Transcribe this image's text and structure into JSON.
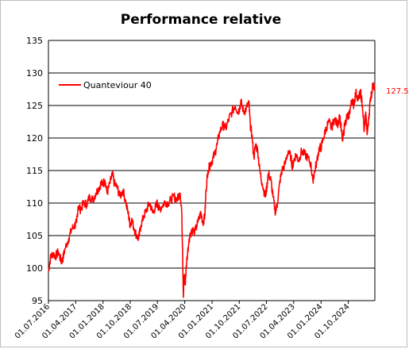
{
  "chart_data": {
    "type": "line",
    "title": "Performance relative",
    "xlabel": "",
    "ylabel": "",
    "ylim": [
      95,
      135
    ],
    "yticks": [
      95,
      100,
      105,
      110,
      115,
      120,
      125,
      130,
      135
    ],
    "xticks": [
      "01.07.2016",
      "01.04.2017",
      "01.01.2018",
      "01.10.2018",
      "01.07.2019",
      "01.04.2020",
      "01.01.2021",
      "01.10.2021",
      "01.07.2022",
      "01.04.2023",
      "01.01.2024",
      "01.10.2024"
    ],
    "grid": "horizontal",
    "legend_position": "top-left",
    "end_label": "127.5",
    "series": [
      {
        "name": "Quanteviour 40",
        "color": "#ff0000",
        "points": [
          [
            "2016-07-01",
            99.5
          ],
          [
            "2016-07-20",
            101.5
          ],
          [
            "2016-08-15",
            102.3
          ],
          [
            "2016-09-10",
            101.8
          ],
          [
            "2016-10-10",
            102.5
          ],
          [
            "2016-11-05",
            101.0
          ],
          [
            "2016-11-20",
            101.3
          ],
          [
            "2016-12-15",
            103.0
          ],
          [
            "2017-01-20",
            104.5
          ],
          [
            "2017-02-20",
            106.0
          ],
          [
            "2017-03-20",
            106.5
          ],
          [
            "2017-04-10",
            107.0
          ],
          [
            "2017-04-25",
            109.5
          ],
          [
            "2017-05-20",
            109.0
          ],
          [
            "2017-06-20",
            110.0
          ],
          [
            "2017-07-20",
            109.8
          ],
          [
            "2017-08-20",
            111.0
          ],
          [
            "2017-09-20",
            110.5
          ],
          [
            "2017-10-20",
            111.5
          ],
          [
            "2017-11-20",
            112.3
          ],
          [
            "2017-12-10",
            113.0
          ],
          [
            "2018-01-01",
            113.0
          ],
          [
            "2018-01-20",
            113.5
          ],
          [
            "2018-02-10",
            111.5
          ],
          [
            "2018-03-10",
            113.0
          ],
          [
            "2018-04-05",
            114.5
          ],
          [
            "2018-04-25",
            113.0
          ],
          [
            "2018-05-20",
            112.5
          ],
          [
            "2018-06-20",
            111.0
          ],
          [
            "2018-07-20",
            112.0
          ],
          [
            "2018-08-20",
            110.0
          ],
          [
            "2018-09-15",
            108.0
          ],
          [
            "2018-10-01",
            106.5
          ],
          [
            "2018-10-15",
            107.5
          ],
          [
            "2018-11-10",
            106.0
          ],
          [
            "2018-12-05",
            105.0
          ],
          [
            "2018-12-25",
            104.5
          ],
          [
            "2019-01-15",
            106.5
          ],
          [
            "2019-02-15",
            108.0
          ],
          [
            "2019-03-15",
            109.0
          ],
          [
            "2019-04-15",
            110.0
          ],
          [
            "2019-05-15",
            108.5
          ],
          [
            "2019-06-15",
            109.5
          ],
          [
            "2019-07-01",
            110.0
          ],
          [
            "2019-07-20",
            109.0
          ],
          [
            "2019-08-15",
            109.5
          ],
          [
            "2019-09-15",
            110.2
          ],
          [
            "2019-10-15",
            110.0
          ],
          [
            "2019-11-15",
            110.5
          ],
          [
            "2019-12-15",
            111.0
          ],
          [
            "2020-01-15",
            110.5
          ],
          [
            "2020-02-15",
            111.5
          ],
          [
            "2020-03-01",
            109.0
          ],
          [
            "2020-03-10",
            103.0
          ],
          [
            "2020-03-18",
            95.5
          ],
          [
            "2020-03-28",
            99.0
          ],
          [
            "2020-04-05",
            97.5
          ],
          [
            "2020-04-20",
            101.0
          ],
          [
            "2020-05-15",
            104.5
          ],
          [
            "2020-06-10",
            106.0
          ],
          [
            "2020-07-10",
            105.5
          ],
          [
            "2020-08-10",
            107.0
          ],
          [
            "2020-09-10",
            108.5
          ],
          [
            "2020-10-01",
            107.0
          ],
          [
            "2020-10-20",
            108.0
          ],
          [
            "2020-11-01",
            112.0
          ],
          [
            "2020-11-20",
            115.0
          ],
          [
            "2020-12-15",
            116.0
          ],
          [
            "2021-01-01",
            116.5
          ],
          [
            "2021-01-25",
            117.5
          ],
          [
            "2021-02-20",
            119.0
          ],
          [
            "2021-03-20",
            121.0
          ],
          [
            "2021-04-20",
            122.0
          ],
          [
            "2021-05-20",
            121.5
          ],
          [
            "2021-06-20",
            123.0
          ],
          [
            "2021-07-20",
            124.0
          ],
          [
            "2021-08-20",
            125.0
          ],
          [
            "2021-09-20",
            124.0
          ],
          [
            "2021-10-01",
            124.5
          ],
          [
            "2021-10-20",
            125.5
          ],
          [
            "2021-11-15",
            124.0
          ],
          [
            "2021-12-10",
            124.5
          ],
          [
            "2022-01-05",
            125.5
          ],
          [
            "2022-01-20",
            122.0
          ],
          [
            "2022-02-05",
            120.5
          ],
          [
            "2022-02-25",
            117.0
          ],
          [
            "2022-03-15",
            119.0
          ],
          [
            "2022-04-05",
            118.0
          ],
          [
            "2022-04-25",
            115.0
          ],
          [
            "2022-05-20",
            113.0
          ],
          [
            "2022-06-20",
            111.0
          ],
          [
            "2022-07-01",
            112.0
          ],
          [
            "2022-07-20",
            114.5
          ],
          [
            "2022-08-15",
            113.5
          ],
          [
            "2022-09-05",
            111.0
          ],
          [
            "2022-09-30",
            108.5
          ],
          [
            "2022-10-20",
            110.0
          ],
          [
            "2022-11-15",
            113.5
          ],
          [
            "2022-12-05",
            115.0
          ],
          [
            "2023-01-05",
            116.0
          ],
          [
            "2023-02-05",
            118.0
          ],
          [
            "2023-03-05",
            117.0
          ],
          [
            "2023-03-20",
            115.5
          ],
          [
            "2023-04-01",
            116.5
          ],
          [
            "2023-04-25",
            117.5
          ],
          [
            "2023-05-20",
            116.5
          ],
          [
            "2023-06-20",
            118.0
          ],
          [
            "2023-07-20",
            117.5
          ],
          [
            "2023-08-20",
            117.0
          ],
          [
            "2023-09-20",
            116.0
          ],
          [
            "2023-10-10",
            113.5
          ],
          [
            "2023-10-25",
            114.5
          ],
          [
            "2023-11-20",
            116.5
          ],
          [
            "2023-12-15",
            118.5
          ],
          [
            "2024-01-01",
            118.5
          ],
          [
            "2024-01-25",
            120.0
          ],
          [
            "2024-02-20",
            121.5
          ],
          [
            "2024-03-20",
            122.5
          ],
          [
            "2024-04-15",
            121.5
          ],
          [
            "2024-05-15",
            123.0
          ],
          [
            "2024-06-15",
            122.0
          ],
          [
            "2024-07-05",
            123.5
          ],
          [
            "2024-07-25",
            121.0
          ],
          [
            "2024-08-05",
            119.5
          ],
          [
            "2024-08-25",
            122.0
          ],
          [
            "2024-09-20",
            123.5
          ],
          [
            "2024-10-01",
            123.0
          ],
          [
            "2024-10-20",
            124.5
          ],
          [
            "2024-11-10",
            126.0
          ],
          [
            "2024-11-25",
            125.0
          ],
          [
            "2024-12-15",
            127.0
          ],
          [
            "2025-01-10",
            126.0
          ],
          [
            "2025-02-01",
            127.0
          ],
          [
            "2025-02-20",
            125.0
          ],
          [
            "2025-03-10",
            121.0
          ],
          [
            "2025-03-25",
            124.0
          ],
          [
            "2025-04-08",
            120.5
          ],
          [
            "2025-04-25",
            123.0
          ],
          [
            "2025-05-10",
            126.0
          ],
          [
            "2025-05-25",
            127.0
          ],
          [
            "2025-06-10",
            128.5
          ],
          [
            "2025-06-25",
            127.5
          ]
        ]
      }
    ]
  }
}
